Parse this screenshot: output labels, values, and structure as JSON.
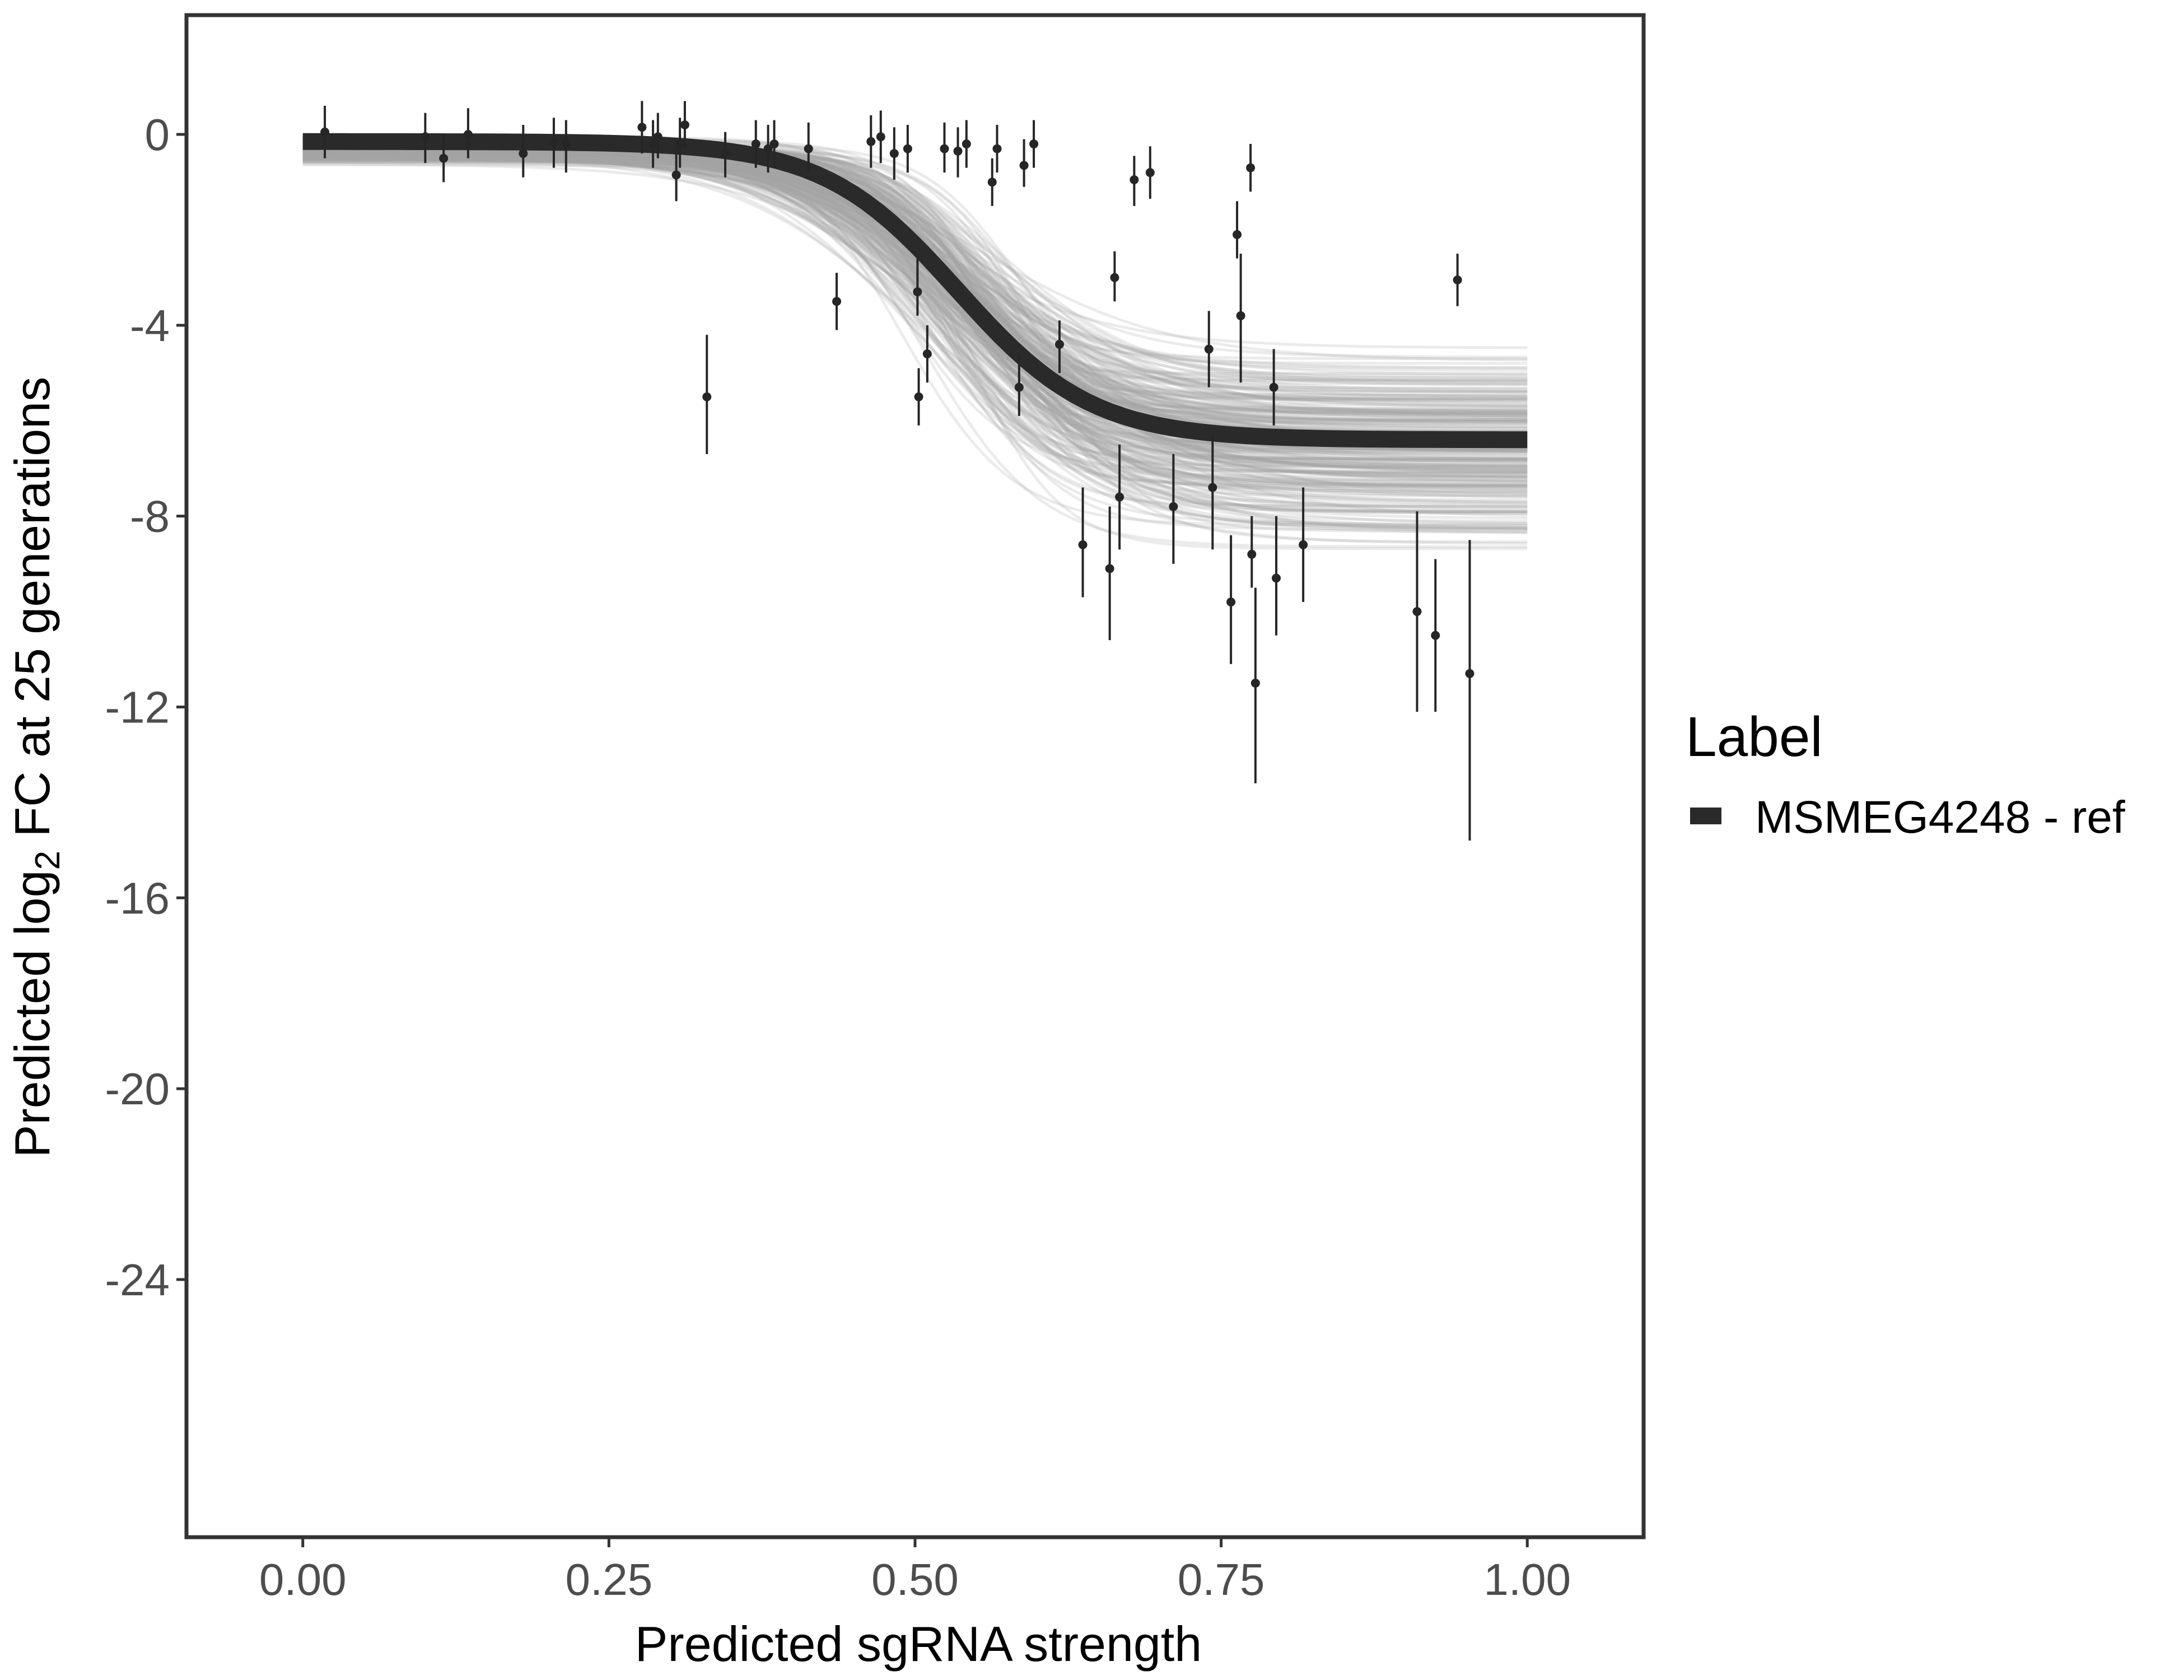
{
  "chart_data": {
    "type": "scatter",
    "title": "",
    "xlabel": "Predicted sgRNA strength",
    "ylabel": {
      "before": "Predicted  log",
      "sub": "2",
      "after": " FC at 25 generations"
    },
    "xlim": [
      -0.095,
      1.095
    ],
    "ylim": [
      -29.4,
      2.5
    ],
    "x_ticks": [
      0,
      0.25,
      0.5,
      0.75,
      1
    ],
    "x_tick_labels": [
      "0.00",
      "0.25",
      "0.50",
      "0.75",
      "1.00"
    ],
    "y_ticks": [
      0,
      -4,
      -8,
      -12,
      -16,
      -20,
      -24
    ],
    "y_tick_labels": [
      "0",
      "-4",
      "-8",
      "-12",
      "-16",
      "-20",
      "-24"
    ],
    "grid": false,
    "legend": {
      "title": "Label",
      "position": "right",
      "entries": [
        {
          "label": "MSMEG4248 - ref",
          "color": "#2a2a2a"
        }
      ]
    },
    "colors": {
      "fit": "#2a2a2a",
      "band": "#a6a6a6",
      "points": "#262626",
      "frame": "#333333"
    },
    "fit": {
      "name": "MSMEG4248 - ref",
      "model": "logistic",
      "upper": -0.15,
      "lower": -6.4,
      "midpoint": 0.535,
      "scale": 0.055
    },
    "posterior_band": {
      "upper_range": [
        -0.65,
        0.0
      ],
      "lower_range": [
        -8.85,
        -4.35
      ],
      "midpoint_range": [
        0.46,
        0.62
      ],
      "scale_range": [
        0.035,
        0.08
      ],
      "n_draws": 260
    },
    "points": [
      {
        "x": 0.018,
        "y": 0.05,
        "lo": -0.5,
        "hi": 0.6
      },
      {
        "x": 0.1,
        "y": -0.05,
        "lo": -0.6,
        "hi": 0.45
      },
      {
        "x": 0.115,
        "y": -0.5,
        "lo": -1.0,
        "hi": 0.0
      },
      {
        "x": 0.135,
        "y": 0.0,
        "lo": -0.5,
        "hi": 0.55
      },
      {
        "x": 0.18,
        "y": -0.4,
        "lo": -0.9,
        "hi": 0.2
      },
      {
        "x": 0.205,
        "y": -0.15,
        "lo": -0.7,
        "hi": 0.35
      },
      {
        "x": 0.215,
        "y": -0.2,
        "lo": -0.8,
        "hi": 0.3
      },
      {
        "x": 0.277,
        "y": 0.15,
        "lo": -0.4,
        "hi": 0.7
      },
      {
        "x": 0.286,
        "y": -0.2,
        "lo": -0.7,
        "hi": 0.3
      },
      {
        "x": 0.29,
        "y": -0.05,
        "lo": -0.5,
        "hi": 0.45
      },
      {
        "x": 0.305,
        "y": -0.85,
        "lo": -1.4,
        "hi": -0.3
      },
      {
        "x": 0.308,
        "y": -0.2,
        "lo": -0.7,
        "hi": 0.35
      },
      {
        "x": 0.312,
        "y": 0.2,
        "lo": -0.3,
        "hi": 0.7
      },
      {
        "x": 0.33,
        "y": -5.5,
        "lo": -6.7,
        "hi": -4.2
      },
      {
        "x": 0.345,
        "y": -0.4,
        "lo": -0.9,
        "hi": 0.05
      },
      {
        "x": 0.37,
        "y": -0.2,
        "lo": -0.7,
        "hi": 0.3
      },
      {
        "x": 0.38,
        "y": -0.3,
        "lo": -0.8,
        "hi": 0.2
      },
      {
        "x": 0.385,
        "y": -0.2,
        "lo": -0.7,
        "hi": 0.3
      },
      {
        "x": 0.413,
        "y": -0.3,
        "lo": -0.8,
        "hi": 0.25
      },
      {
        "x": 0.436,
        "y": -3.5,
        "lo": -4.1,
        "hi": -2.9
      },
      {
        "x": 0.464,
        "y": -0.15,
        "lo": -0.7,
        "hi": 0.4
      },
      {
        "x": 0.472,
        "y": -0.05,
        "lo": -0.6,
        "hi": 0.5
      },
      {
        "x": 0.483,
        "y": -0.4,
        "lo": -0.95,
        "hi": 0.15
      },
      {
        "x": 0.494,
        "y": -0.3,
        "lo": -0.8,
        "hi": 0.2
      },
      {
        "x": 0.502,
        "y": -3.3,
        "lo": -3.8,
        "hi": -2.6
      },
      {
        "x": 0.503,
        "y": -5.5,
        "lo": -6.1,
        "hi": -4.9
      },
      {
        "x": 0.51,
        "y": -4.6,
        "lo": -5.2,
        "hi": -4.0
      },
      {
        "x": 0.524,
        "y": -0.3,
        "lo": -0.8,
        "hi": 0.25
      },
      {
        "x": 0.535,
        "y": -0.35,
        "lo": -0.9,
        "hi": 0.15
      },
      {
        "x": 0.542,
        "y": -0.2,
        "lo": -0.7,
        "hi": 0.3
      },
      {
        "x": 0.563,
        "y": -1.0,
        "lo": -1.5,
        "hi": -0.5
      },
      {
        "x": 0.567,
        "y": -0.3,
        "lo": -0.8,
        "hi": 0.2
      },
      {
        "x": 0.585,
        "y": -5.3,
        "lo": -5.9,
        "hi": -4.6
      },
      {
        "x": 0.589,
        "y": -0.65,
        "lo": -1.1,
        "hi": -0.1
      },
      {
        "x": 0.597,
        "y": -0.2,
        "lo": -0.7,
        "hi": 0.3
      },
      {
        "x": 0.618,
        "y": -4.4,
        "lo": -5.0,
        "hi": -3.9
      },
      {
        "x": 0.637,
        "y": -8.6,
        "lo": -9.7,
        "hi": -7.4
      },
      {
        "x": 0.659,
        "y": -9.1,
        "lo": -10.6,
        "hi": -7.8
      },
      {
        "x": 0.663,
        "y": -3.0,
        "lo": -3.5,
        "hi": -2.45
      },
      {
        "x": 0.667,
        "y": -7.6,
        "lo": -8.7,
        "hi": -6.5
      },
      {
        "x": 0.679,
        "y": -0.95,
        "lo": -1.5,
        "hi": -0.45
      },
      {
        "x": 0.692,
        "y": -0.8,
        "lo": -1.35,
        "hi": -0.25
      },
      {
        "x": 0.711,
        "y": -7.8,
        "lo": -9.0,
        "hi": -6.7
      },
      {
        "x": 0.74,
        "y": -4.5,
        "lo": -5.3,
        "hi": -3.7
      },
      {
        "x": 0.743,
        "y": -7.4,
        "lo": -8.7,
        "hi": -6.3
      },
      {
        "x": 0.758,
        "y": -9.8,
        "lo": -11.1,
        "hi": -8.4
      },
      {
        "x": 0.763,
        "y": -2.1,
        "lo": -2.6,
        "hi": -1.4
      },
      {
        "x": 0.766,
        "y": -3.8,
        "lo": -5.2,
        "hi": -2.5
      },
      {
        "x": 0.774,
        "y": -0.7,
        "lo": -1.2,
        "hi": -0.2
      },
      {
        "x": 0.775,
        "y": -8.8,
        "lo": -9.5,
        "hi": -8.0
      },
      {
        "x": 0.778,
        "y": -11.5,
        "lo": -13.6,
        "hi": -9.5
      },
      {
        "x": 0.793,
        "y": -5.3,
        "lo": -6.1,
        "hi": -4.5
      },
      {
        "x": 0.795,
        "y": -9.3,
        "lo": -10.5,
        "hi": -8.0
      },
      {
        "x": 0.817,
        "y": -8.6,
        "lo": -9.8,
        "hi": -7.4
      },
      {
        "x": 0.91,
        "y": -10.0,
        "lo": -12.1,
        "hi": -7.9
      },
      {
        "x": 0.925,
        "y": -10.5,
        "lo": -12.1,
        "hi": -8.9
      },
      {
        "x": 0.943,
        "y": -3.05,
        "lo": -3.6,
        "hi": -2.5
      },
      {
        "x": 0.953,
        "y": -11.3,
        "lo": -14.8,
        "hi": -8.5
      }
    ]
  }
}
